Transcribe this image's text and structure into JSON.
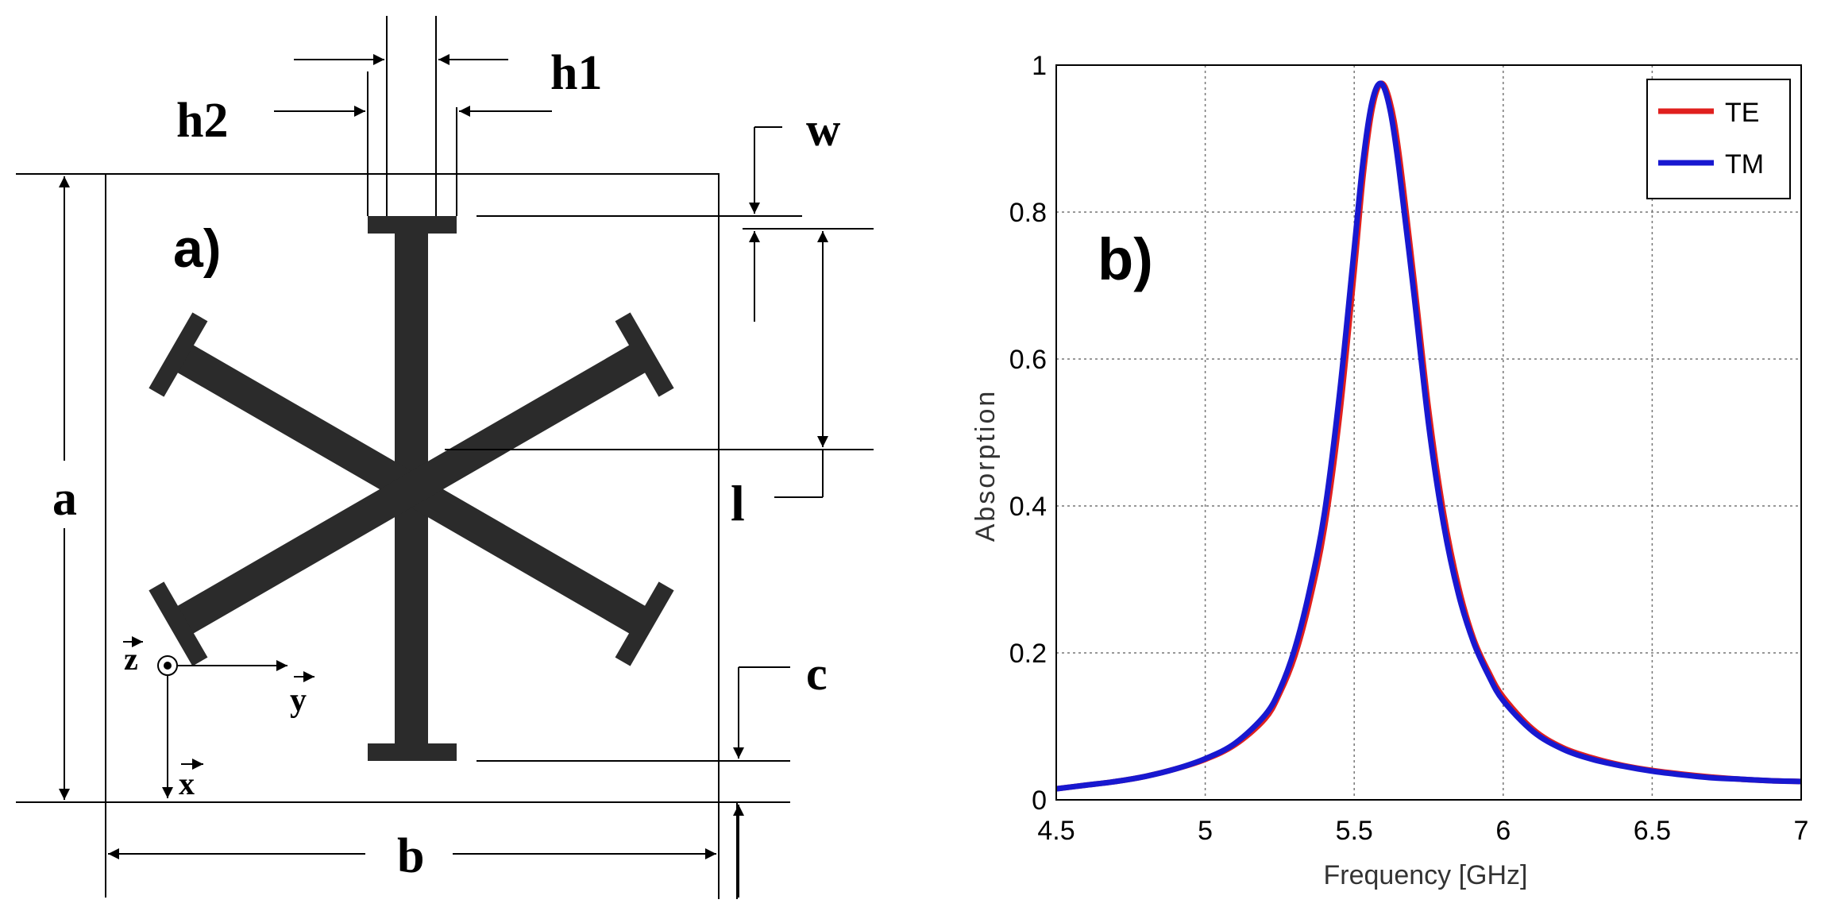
{
  "panel_a": {
    "label": "a)",
    "dimensions": {
      "a": "a",
      "b": "b",
      "c": "c",
      "l": "l",
      "w": "w",
      "h1": "h1",
      "h2": "h2"
    },
    "axes": {
      "z": "z",
      "y": "y",
      "x": "x"
    }
  },
  "panel_b": {
    "label": "b)"
  },
  "chart_data": {
    "type": "line",
    "xlabel": "Frequency [GHz]",
    "ylabel": "Absorption",
    "xlim": [
      4.5,
      7
    ],
    "ylim": [
      0,
      1
    ],
    "xticks": [
      "4.5",
      "5",
      "5.5",
      "6",
      "6.5",
      "7"
    ],
    "yticks": [
      "0",
      "0.2",
      "0.4",
      "0.6",
      "0.8",
      "1"
    ],
    "grid": true,
    "legend_position": "top-right",
    "peak_frequency": 5.59,
    "series": [
      {
        "name": "TE",
        "color": "#e0201e",
        "x": [
          4.5,
          4.6,
          4.7,
          4.8,
          4.9,
          5.0,
          5.1,
          5.2,
          5.25,
          5.3,
          5.35,
          5.4,
          5.45,
          5.5,
          5.53,
          5.56,
          5.59,
          5.62,
          5.65,
          5.7,
          5.75,
          5.8,
          5.85,
          5.9,
          5.95,
          6.0,
          6.1,
          6.2,
          6.3,
          6.4,
          6.5,
          6.6,
          6.7,
          6.8,
          6.9,
          7.0
        ],
        "y": [
          0.015,
          0.02,
          0.025,
          0.032,
          0.042,
          0.055,
          0.075,
          0.11,
          0.145,
          0.195,
          0.27,
          0.37,
          0.52,
          0.72,
          0.85,
          0.94,
          0.975,
          0.95,
          0.88,
          0.71,
          0.53,
          0.39,
          0.29,
          0.22,
          0.175,
          0.14,
          0.096,
          0.071,
          0.057,
          0.047,
          0.04,
          0.035,
          0.031,
          0.028,
          0.026,
          0.025
        ]
      },
      {
        "name": "TM",
        "color": "#1818d0",
        "x": [
          4.5,
          4.6,
          4.7,
          4.8,
          4.9,
          5.0,
          5.1,
          5.2,
          5.25,
          5.3,
          5.35,
          5.4,
          5.45,
          5.5,
          5.53,
          5.56,
          5.59,
          5.62,
          5.65,
          5.7,
          5.75,
          5.8,
          5.85,
          5.9,
          5.95,
          6.0,
          6.1,
          6.2,
          6.3,
          6.4,
          6.5,
          6.6,
          6.7,
          6.8,
          6.9,
          7.0
        ],
        "y": [
          0.015,
          0.02,
          0.025,
          0.032,
          0.042,
          0.056,
          0.077,
          0.115,
          0.15,
          0.205,
          0.285,
          0.39,
          0.55,
          0.75,
          0.87,
          0.95,
          0.975,
          0.94,
          0.86,
          0.69,
          0.51,
          0.375,
          0.28,
          0.215,
          0.17,
          0.135,
          0.093,
          0.069,
          0.055,
          0.046,
          0.039,
          0.034,
          0.03,
          0.028,
          0.026,
          0.025
        ]
      }
    ]
  }
}
